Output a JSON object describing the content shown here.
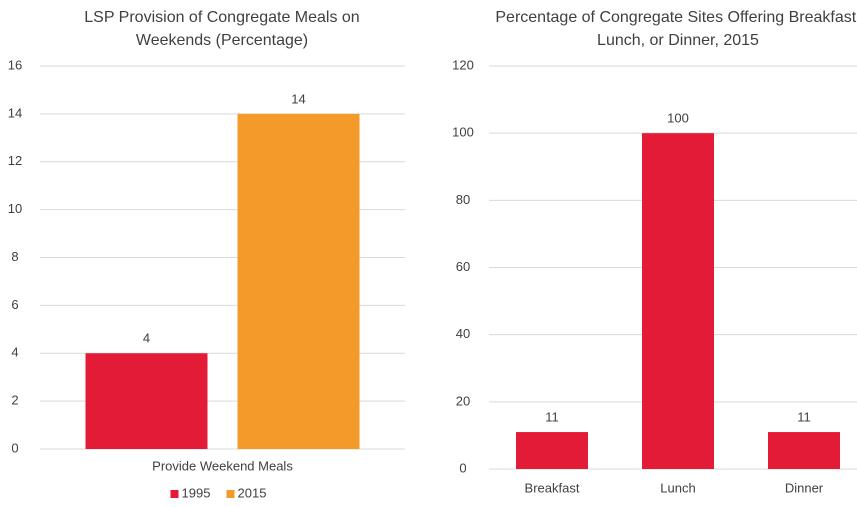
{
  "chart_data": [
    {
      "type": "grouped_bar",
      "title": "LSP Provision of Congregate Meals on Weekends (Percentage)",
      "categories": [
        "Provide Weekend Meals"
      ],
      "series": [
        {
          "name": "1995",
          "color": "#e31b37",
          "values": [
            4
          ]
        },
        {
          "name": "2015",
          "color": "#f39a2b",
          "values": [
            14
          ]
        }
      ],
      "ylim": [
        0,
        16
      ],
      "yticks": [
        0,
        2,
        4,
        6,
        8,
        10,
        12,
        14,
        16
      ],
      "grid": true,
      "legend": "bottom"
    },
    {
      "type": "bar",
      "title": "Percentage of Congregate Sites Offering Breakfast, Lunch, or Dinner, 2015",
      "categories": [
        "Breakfast",
        "Lunch",
        "Dinner"
      ],
      "values": [
        11,
        100,
        11
      ],
      "color": "#e31b37",
      "ylim": [
        0,
        120
      ],
      "yticks": [
        0,
        20,
        40,
        60,
        80,
        100,
        120
      ],
      "grid": true
    }
  ]
}
